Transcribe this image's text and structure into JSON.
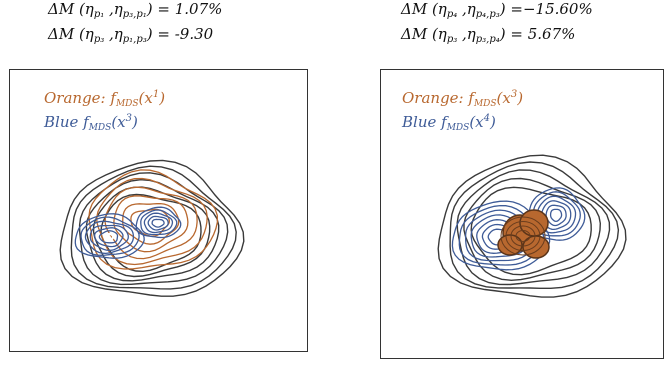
{
  "left": {
    "line1": {
      "prefix": "ΔM (η",
      "s1": "p₁",
      "mid": " ,η",
      "s2": "p₃,p₁",
      "suffix": ") = 1.07%"
    },
    "line2": {
      "prefix": "ΔM (η",
      "s1": "p₃",
      "mid": " ,η",
      "s2": "p₁,p₃",
      "suffix": ") =  -9.30"
    },
    "legend_orange_label": "Orange: ",
    "legend_orange_func": "f",
    "legend_orange_sub": "MDS",
    "legend_orange_arg": "(x",
    "legend_orange_sup": "1",
    "legend_orange_close": ")",
    "legend_blue_label": "Blue  ",
    "legend_blue_func": "f",
    "legend_blue_sub": "MDS",
    "legend_blue_arg": "(x",
    "legend_blue_sup": "3",
    "legend_blue_close": ")"
  },
  "right": {
    "line1": {
      "prefix": "ΔM (η",
      "s1": "p₄",
      "mid": " ,η",
      "s2": "p₄,p₃",
      "suffix": ") =−15.60%"
    },
    "line2": {
      "prefix": "ΔM (η",
      "s1": "p₃",
      "mid": " ,η",
      "s2": "p₃,p₄",
      "suffix": ") =  5.67%"
    },
    "legend_orange_label": "Orange: ",
    "legend_orange_func": "f",
    "legend_orange_sub": "MDS",
    "legend_orange_arg": "(x",
    "legend_orange_sup": "3",
    "legend_orange_close": ")",
    "legend_blue_label": "Blue  ",
    "legend_blue_func": "f",
    "legend_blue_sub": "MDS",
    "legend_blue_arg": "(x",
    "legend_blue_sup": "4",
    "legend_blue_close": ")"
  },
  "colors": {
    "orange": "#b8682f",
    "blue": "#3e5b97",
    "dark": "#3a3a3a"
  }
}
